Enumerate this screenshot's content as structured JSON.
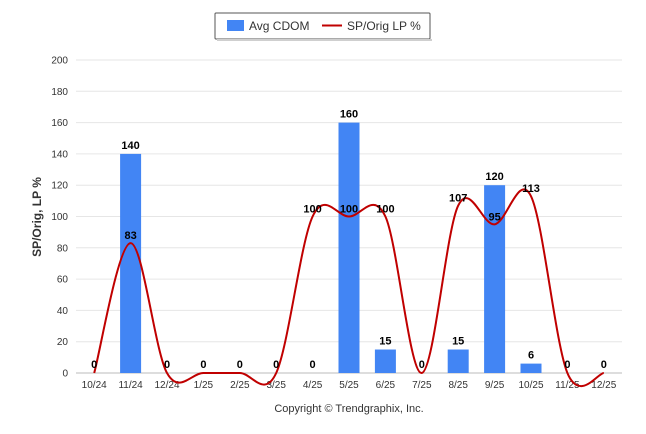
{
  "chart_data": {
    "type": "bar",
    "categories": [
      "10/24",
      "11/24",
      "12/24",
      "1/25",
      "2/25",
      "3/25",
      "4/25",
      "5/25",
      "6/25",
      "7/25",
      "8/25",
      "9/25",
      "10/25",
      "11/25",
      "12/25"
    ],
    "series": [
      {
        "name": "Avg CDOM",
        "kind": "bar",
        "color": "#4285f4",
        "values": [
          0,
          140,
          0,
          0,
          0,
          0,
          0,
          160,
          15,
          0,
          15,
          120,
          6,
          0,
          0
        ]
      },
      {
        "name": "SP/Orig LP %",
        "kind": "line",
        "color": "#c00000",
        "values": [
          0,
          83,
          0,
          0,
          0,
          0,
          100,
          100,
          100,
          0,
          107,
          95,
          113,
          0,
          0
        ]
      }
    ],
    "bar_labels": [
      "0",
      "140",
      "0",
      "0",
      "0",
      "0",
      "0",
      "160",
      "15",
      "0",
      "15",
      "120",
      "6",
      "0",
      "0"
    ],
    "line_labels": [
      "",
      "83",
      "",
      "",
      "",
      "",
      "100",
      "100",
      "100",
      "",
      "107",
      "95",
      "113",
      "",
      ""
    ],
    "ylabel": "SP/Orig, LP %",
    "ylim": [
      0,
      200
    ],
    "yticks": [
      0,
      20,
      40,
      60,
      80,
      100,
      120,
      140,
      160,
      180,
      200
    ],
    "grid": true,
    "legend_position": "top-center"
  },
  "credit": "Copyright © Trendgraphix, Inc."
}
